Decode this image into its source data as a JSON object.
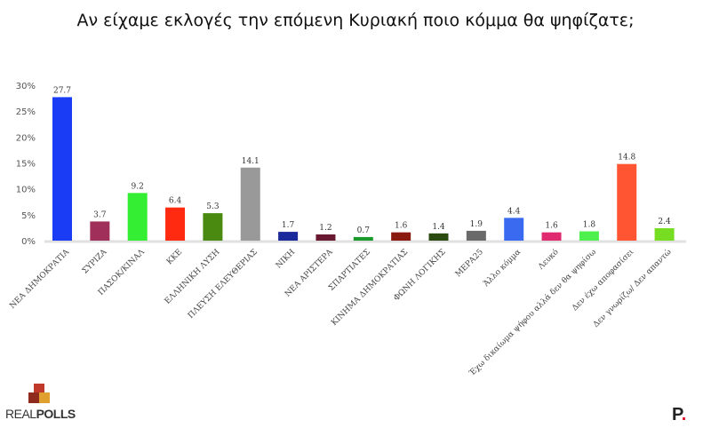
{
  "chart_data": {
    "type": "bar",
    "title": "Αν είχαμε εκλογές την επόμενη Κυριακή ποιο κόμμα θα ψηφίζατε;",
    "categories": [
      "ΝΕΑ ΔΗΜΟΚΡΑΤΙΑ",
      "ΣΥΡΙΖΑ",
      "ΠΑΣΟΚ/ΚΙΝΑΛ",
      "ΚΚΕ",
      "ΕΛΛΗΝΙΚΗ ΛΥΣΗ",
      "ΠΛΕΥΣΗ ΕΛΕΥΘΕΡΙΑΣ",
      "ΝΙΚΗ",
      "ΝΕΑ ΑΡΙΣΤΕΡΑ",
      "ΣΠΑΡΤΙΑΤΕΣ",
      "ΚΙΝΗΜΑ ΔΗΜΟΚΡΑΤΙΑΣ",
      "ΦΩΝΗ ΛΟΓΙΚΗΣ",
      "ΜΕΡΑ25",
      "Άλλο κόμμα",
      "Λευκό",
      "Έχω δικαίωμα ψήφου αλλά δεν θα ψηφίσω",
      "Δεν έχω αποφασίσει",
      "Δεν γνωρίζω/ Δεν απαντώ"
    ],
    "values": [
      27.7,
      3.7,
      9.2,
      6.4,
      5.3,
      14.1,
      1.7,
      1.2,
      0.7,
      1.6,
      1.4,
      1.9,
      4.4,
      1.6,
      1.8,
      14.8,
      2.4
    ],
    "data_labels": [
      "27.7",
      "3.7",
      "9.2",
      "6.4",
      "5.3",
      "14.1",
      "1.7",
      "1.2",
      "0.7",
      "1.6",
      "1.4",
      "1.9",
      "4.4",
      "1.6",
      "1.8",
      "14.8",
      "2.4"
    ],
    "colors": [
      "#1a3cf5",
      "#a0305a",
      "#33ee33",
      "#ff2a10",
      "#4a8a10",
      "#999999",
      "#1a2a9a",
      "#6a1a30",
      "#1a9a2a",
      "#8a1a10",
      "#2a4a10",
      "#6a6a6a",
      "#3a6af0",
      "#e02a70",
      "#4ef04e",
      "#ff5533",
      "#77dd22"
    ],
    "yticks": [
      "0%",
      "5%",
      "10%",
      "15%",
      "20%",
      "25%",
      "30%"
    ],
    "ylim": [
      0,
      30
    ],
    "grid": false,
    "xlabel": "",
    "ylabel": ""
  },
  "logos": {
    "left": "REALPOLLS",
    "right": "P."
  }
}
